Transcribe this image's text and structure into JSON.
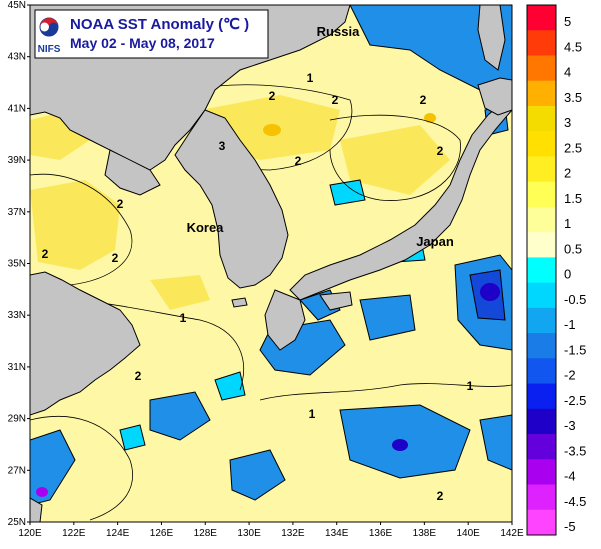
{
  "title": {
    "main": "NOAA SST Anomaly (℃ )",
    "period": "May 02 - May 08, 2017",
    "agency": "NIFS"
  },
  "map": {
    "lat_ticks": [
      "45N",
      "43N",
      "41N",
      "39N",
      "37N",
      "35N",
      "33N",
      "31N",
      "29N",
      "27N",
      "25N"
    ],
    "lon_ticks": [
      "120E",
      "122E",
      "124E",
      "126E",
      "128E",
      "130E",
      "132E",
      "134E",
      "136E",
      "138E",
      "140E",
      "142E"
    ],
    "place_labels": [
      {
        "name": "Russia"
      },
      {
        "name": "Korea"
      },
      {
        "name": "Japan"
      }
    ],
    "contour_labels": [
      "1",
      "2",
      "2",
      "2",
      "2",
      "3",
      "2",
      "2",
      "2",
      "2",
      "1",
      "2",
      "1",
      "2",
      "1"
    ]
  },
  "colorbar": {
    "labels": [
      "5",
      "4.5",
      "4",
      "3.5",
      "3",
      "2.5",
      "2",
      "1.5",
      "1",
      "0.5",
      "0",
      "-0.5",
      "-1",
      "-1.5",
      "-2",
      "-2.5",
      "-3",
      "-3.5",
      "-4",
      "-4.5",
      "-5"
    ],
    "colors": [
      "#ff0033",
      "#ff3b0a",
      "#ff7700",
      "#ffb000",
      "#f4dc00",
      "#ffe000",
      "#ffee22",
      "#ffff55",
      "#ffff99",
      "#ffffcc",
      "#00ffff",
      "#00d7ff",
      "#12a6f0",
      "#1a7ce6",
      "#1256f0",
      "#0a20f0",
      "#1e00c8",
      "#6400dc",
      "#aa00f0",
      "#dd22ff",
      "#ff44ff"
    ]
  },
  "colors": {
    "land": "#c4c4c4",
    "ocean_warm": "#fdf7a6",
    "frame": "#000000"
  }
}
